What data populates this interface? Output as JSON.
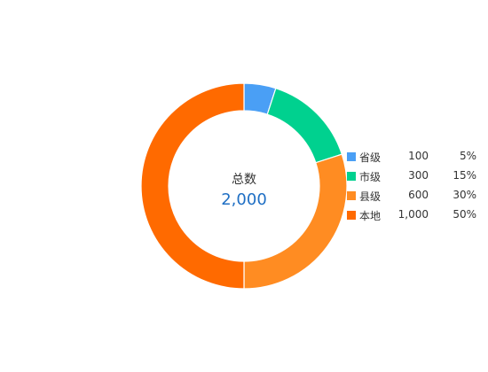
{
  "chart_data": {
    "type": "pie",
    "center_title": "总数",
    "center_total": "2,000",
    "legend_position": "right",
    "slices": [
      {
        "name": "省级",
        "value": 100,
        "value_label": "100",
        "percent": "5%",
        "color": "#4a9ff5"
      },
      {
        "name": "市级",
        "value": 300,
        "value_label": "300",
        "percent": "15%",
        "color": "#00d18f"
      },
      {
        "name": "县级",
        "value": 600,
        "value_label": "600",
        "percent": "30%",
        "color": "#ff8c22"
      },
      {
        "name": "本地",
        "value": 1000,
        "value_label": "1,000",
        "percent": "50%",
        "color": "#ff6a00"
      }
    ]
  }
}
